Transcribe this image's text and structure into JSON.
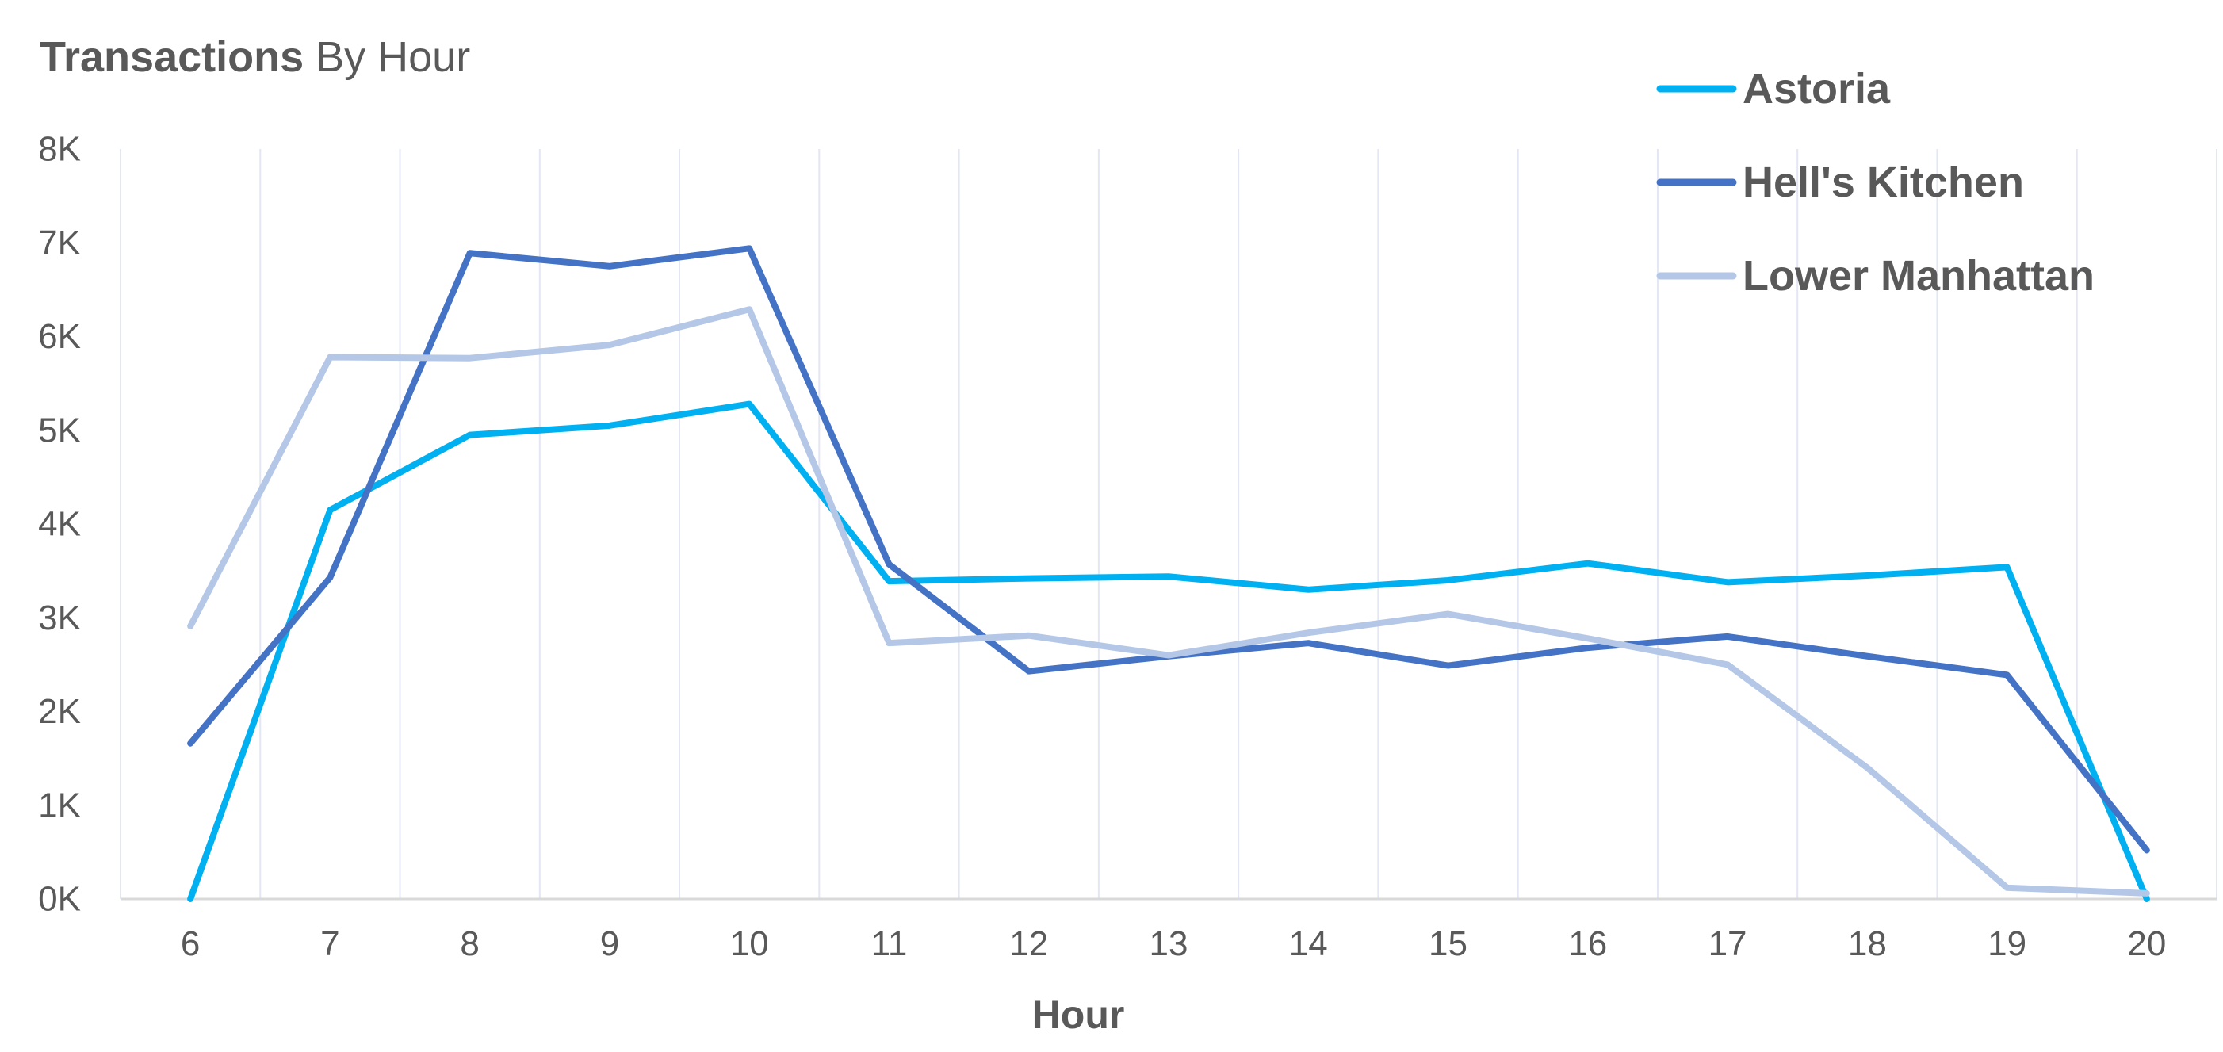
{
  "chart_data": {
    "type": "line",
    "title": {
      "bold": "Transactions",
      "normal": " By Hour"
    },
    "xlabel": "Hour",
    "ylabel": "",
    "x": [
      6,
      7,
      8,
      9,
      10,
      11,
      12,
      13,
      14,
      15,
      16,
      17,
      18,
      19,
      20
    ],
    "x_tick_labels": [
      "6",
      "7",
      "8",
      "9",
      "10",
      "11",
      "12",
      "13",
      "14",
      "15",
      "16",
      "17",
      "18",
      "19",
      "20"
    ],
    "ylim": [
      0,
      8000
    ],
    "y_ticks": [
      0,
      1000,
      2000,
      3000,
      4000,
      5000,
      6000,
      7000,
      8000
    ],
    "y_tick_labels": [
      "0K",
      "1K",
      "2K",
      "3K",
      "4K",
      "5K",
      "6K",
      "7K",
      "8K"
    ],
    "grid": {
      "vertical": true,
      "horizontal": false
    },
    "legend_position": "top-right",
    "series": [
      {
        "name": "Astoria",
        "color": "#00B0F0",
        "values": [
          0,
          4150,
          4950,
          5050,
          5280,
          3390,
          3420,
          3440,
          3300,
          3400,
          3580,
          3380,
          3450,
          3540,
          0
        ]
      },
      {
        "name": "Hell's Kitchen",
        "color": "#4472C4",
        "values": [
          1660,
          3430,
          6890,
          6750,
          6940,
          3570,
          2430,
          2590,
          2730,
          2490,
          2680,
          2800,
          2590,
          2390,
          520
        ]
      },
      {
        "name": "Lower Manhattan",
        "color": "#B4C7E7",
        "values": [
          2910,
          5780,
          5770,
          5910,
          6290,
          2730,
          2810,
          2600,
          2840,
          3040,
          2780,
          2500,
          1400,
          120,
          60
        ]
      }
    ]
  }
}
